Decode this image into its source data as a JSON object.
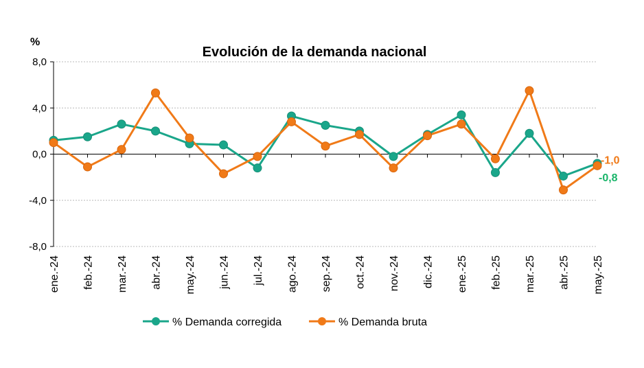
{
  "chart_data": {
    "type": "line",
    "title": "Evolución de la demanda nacional",
    "ylabel": "%",
    "xlabel": "",
    "ylim": [
      -8,
      8
    ],
    "yticks": [
      8,
      4,
      0,
      -4,
      -8
    ],
    "ytick_labels": [
      "8,0",
      "4,0",
      "0,0",
      "-4,0",
      "-8,0"
    ],
    "grid": true,
    "legend_position": "bottom-center",
    "categories": [
      "ene.-24",
      "feb.-24",
      "mar.-24",
      "abr.-24",
      "may.-24",
      "jun.-24",
      "jul.-24",
      "ago.-24",
      "sep.-24",
      "oct.-24",
      "nov.-24",
      "dic.-24",
      "ene.-25",
      "feb.-25",
      "mar.-25",
      "abr.-25",
      "may.-25"
    ],
    "series": [
      {
        "name": "% Demanda corregida",
        "color": "#1aa68a",
        "values": [
          1.2,
          1.5,
          2.6,
          2.0,
          0.9,
          0.8,
          -1.2,
          3.3,
          2.5,
          2.0,
          -0.2,
          1.7,
          3.4,
          -1.6,
          1.8,
          -1.9,
          -0.8
        ],
        "end_label": "-0,8",
        "end_label_color": "#19b56a"
      },
      {
        "name": "% Demanda bruta",
        "color": "#f07a18",
        "values": [
          1.0,
          -1.1,
          0.4,
          5.3,
          1.4,
          -1.7,
          -0.2,
          2.8,
          0.7,
          1.7,
          -1.2,
          1.6,
          2.6,
          -0.4,
          5.5,
          -3.1,
          -1.0
        ],
        "end_label": "-1,0",
        "end_label_color": "#f07a18"
      }
    ]
  }
}
